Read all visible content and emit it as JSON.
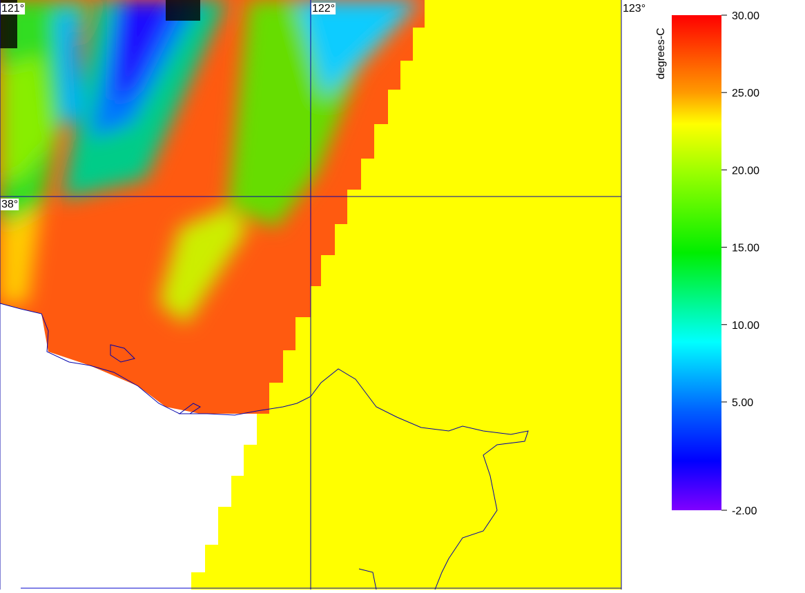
{
  "map": {
    "lonticks": [
      {
        "value": 121,
        "label": "121°"
      },
      {
        "value": 122,
        "label": "122°"
      },
      {
        "value": 123,
        "label": "123°"
      }
    ],
    "latticks": [
      {
        "value": 38,
        "label": "38°"
      }
    ],
    "lonlim": [
      121,
      123
    ],
    "latlim": [
      37.0,
      38.5
    ],
    "colorbar": {
      "title": "degrees-C",
      "lim": [
        -2,
        30
      ],
      "ticks": [
        {
          "value": 30,
          "label": "30.00"
        },
        {
          "value": 25,
          "label": "25.00"
        },
        {
          "value": 20,
          "label": "20.00"
        },
        {
          "value": 15,
          "label": "15.00"
        },
        {
          "value": 10,
          "label": "10.00"
        },
        {
          "value": 5,
          "label": "5.00"
        },
        {
          "value": -2,
          "label": "-2.00"
        }
      ]
    }
  }
}
